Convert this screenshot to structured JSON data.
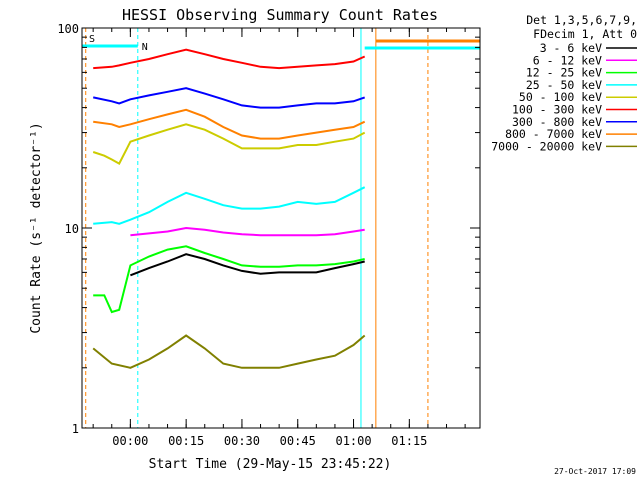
{
  "chart_data": {
    "type": "line",
    "title": "HESSI Observing Summary Count Rates",
    "xlabel": "Start Time (29-May-15 23:45:22)",
    "ylabel": "Count Rate (s⁻¹ detector⁻¹)",
    "yscale": "log",
    "ylim": [
      1,
      100
    ],
    "xlim_minutes": [
      -13,
      94
    ],
    "x_tick_labels": [
      "00:00",
      "00:15",
      "00:30",
      "00:45",
      "01:00",
      "01:15"
    ],
    "x_tick_minutes": [
      0,
      15,
      30,
      45,
      60,
      75
    ],
    "y_tick_labels": [
      "1",
      "10",
      "100"
    ],
    "y_tick_values": [
      1,
      10,
      100
    ],
    "legend_header": [
      "Det 1,3,5,6,7,9,",
      "FDecim 1, Att 0"
    ],
    "legend_position": "right",
    "footer_date": "27-Oct-2017 17:09",
    "markers": {
      "saa_label": "S",
      "night_label": "N",
      "night_start_minute": 2,
      "night_end_minute": 62,
      "saa_line_minute": -12,
      "orange_line_minute": 66,
      "orange_dash_minute": 80,
      "cyan_bar_left": [
        -13,
        2
      ],
      "cyan_bar_right": [
        63,
        94
      ],
      "orange_bar_right": [
        66,
        94
      ]
    },
    "series": [
      {
        "name": "3 - 6 keV",
        "color": "#000000",
        "x": [
          0,
          5,
          10,
          15,
          20,
          25,
          30,
          35,
          40,
          45,
          50,
          55,
          60,
          63
        ],
        "y": [
          5.8,
          6.3,
          6.8,
          7.4,
          7.0,
          6.5,
          6.1,
          5.9,
          6.0,
          6.0,
          6.0,
          6.3,
          6.6,
          6.8
        ]
      },
      {
        "name": "6 - 12 keV",
        "color": "#ff00ff",
        "x": [
          0,
          5,
          10,
          15,
          20,
          25,
          30,
          35,
          40,
          45,
          50,
          55,
          60,
          63
        ],
        "y": [
          9.2,
          9.4,
          9.6,
          10.0,
          9.8,
          9.5,
          9.3,
          9.2,
          9.2,
          9.2,
          9.2,
          9.3,
          9.6,
          9.8
        ]
      },
      {
        "name": "12 - 25 keV",
        "color": "#00ff00",
        "x": [
          -10,
          -7,
          -5,
          -3,
          0,
          5,
          10,
          15,
          20,
          25,
          30,
          35,
          40,
          45,
          50,
          55,
          60,
          63
        ],
        "y": [
          4.6,
          4.6,
          3.8,
          3.9,
          6.5,
          7.2,
          7.8,
          8.1,
          7.5,
          7.0,
          6.5,
          6.4,
          6.4,
          6.5,
          6.5,
          6.6,
          6.8,
          7.0
        ]
      },
      {
        "name": "25 - 50 keV",
        "color": "#00ffff",
        "x": [
          -10,
          -5,
          -3,
          0,
          5,
          10,
          15,
          20,
          25,
          30,
          35,
          40,
          45,
          50,
          55,
          60,
          63
        ],
        "y": [
          10.5,
          10.7,
          10.5,
          11.0,
          12.0,
          13.5,
          15.0,
          14.0,
          13.0,
          12.5,
          12.5,
          12.8,
          13.5,
          13.2,
          13.5,
          15.0,
          16.0
        ]
      },
      {
        "name": "50 - 100 keV",
        "color": "#cccc00",
        "x": [
          -10,
          -7,
          -5,
          -3,
          0,
          5,
          10,
          15,
          20,
          25,
          30,
          35,
          40,
          45,
          50,
          55,
          60,
          63
        ],
        "y": [
          24,
          23,
          22,
          21,
          27,
          29,
          31,
          33,
          31,
          28,
          25,
          25,
          25,
          26,
          26,
          27,
          28,
          30
        ]
      },
      {
        "name": "100 - 300 keV",
        "color": "#ff0000",
        "x": [
          -10,
          -5,
          -3,
          0,
          5,
          10,
          15,
          20,
          25,
          30,
          35,
          40,
          45,
          50,
          55,
          60,
          63
        ],
        "y": [
          63,
          64,
          65,
          67,
          70,
          74,
          78,
          74,
          70,
          67,
          64,
          63,
          64,
          65,
          66,
          68,
          72
        ]
      },
      {
        "name": "300 - 800 keV",
        "color": "#0000ff",
        "x": [
          -10,
          -5,
          -3,
          0,
          5,
          10,
          15,
          20,
          25,
          30,
          35,
          40,
          45,
          50,
          55,
          60,
          63
        ],
        "y": [
          45,
          43,
          42,
          44,
          46,
          48,
          50,
          47,
          44,
          41,
          40,
          40,
          41,
          42,
          42,
          43,
          45
        ]
      },
      {
        "name": "800 - 7000 keV",
        "color": "#ff8000",
        "x": [
          -10,
          -5,
          -3,
          0,
          5,
          10,
          15,
          20,
          25,
          30,
          35,
          40,
          45,
          50,
          55,
          60,
          63
        ],
        "y": [
          34,
          33,
          32,
          33,
          35,
          37,
          39,
          36,
          32,
          29,
          28,
          28,
          29,
          30,
          31,
          32,
          34
        ]
      },
      {
        "name": "7000 - 20000 keV",
        "color": "#808000",
        "x": [
          -10,
          -5,
          0,
          5,
          10,
          15,
          20,
          25,
          30,
          35,
          40,
          45,
          50,
          55,
          60,
          63
        ],
        "y": [
          2.5,
          2.1,
          2.0,
          2.2,
          2.5,
          2.9,
          2.5,
          2.1,
          2.0,
          2.0,
          2.0,
          2.1,
          2.2,
          2.3,
          2.6,
          2.9
        ]
      }
    ]
  }
}
